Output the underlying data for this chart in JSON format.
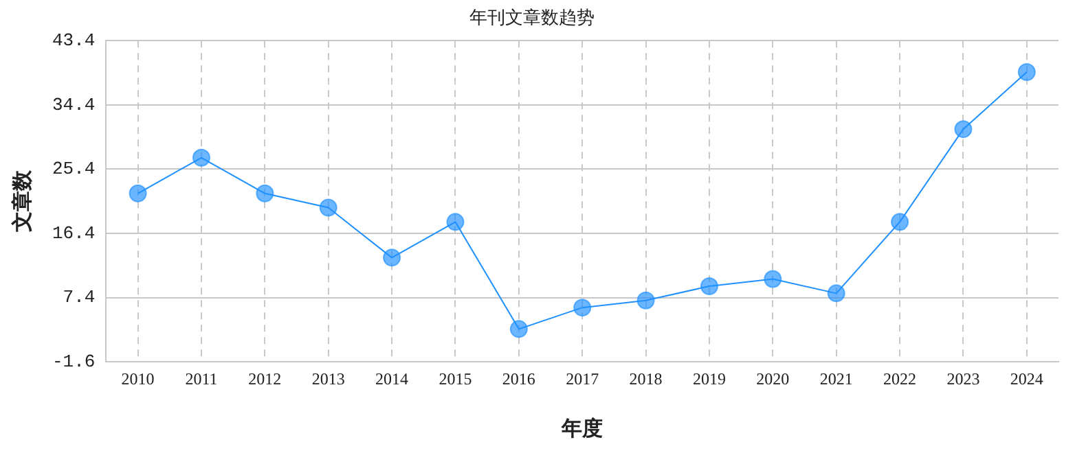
{
  "chart_data": {
    "type": "line",
    "title": "年刊文章数趋势",
    "xlabel": "年度",
    "ylabel": "文章数",
    "categories": [
      "2010",
      "2011",
      "2012",
      "2013",
      "2014",
      "2015",
      "2016",
      "2017",
      "2018",
      "2019",
      "2020",
      "2021",
      "2022",
      "2023",
      "2024"
    ],
    "series": [
      {
        "color": "#1e90ff",
        "values": [
          22,
          27,
          22,
          20,
          13,
          18,
          3,
          6,
          7,
          9,
          10,
          8,
          18,
          31,
          39
        ]
      }
    ],
    "ylim": [
      -1.6,
      43.4
    ],
    "yticks": [
      -1.6,
      7.4,
      16.4,
      25.4,
      34.4,
      43.4
    ],
    "grid": true,
    "legend": false,
    "marker": "circle",
    "line_style": "solid"
  }
}
